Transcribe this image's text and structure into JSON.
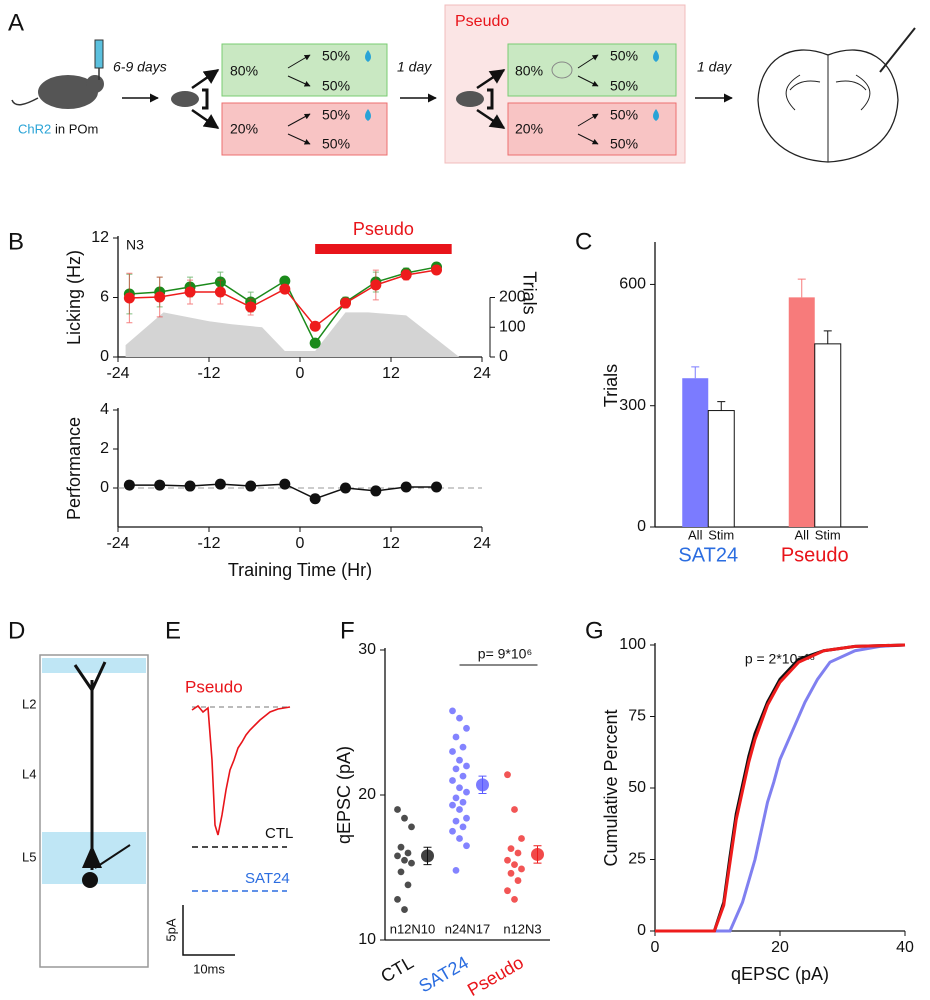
{
  "panel_labels": [
    "A",
    "B",
    "C",
    "D",
    "E",
    "F",
    "G"
  ],
  "panel_a": {
    "interval_1": "6-9 days",
    "virus": "ChR2",
    "region": "in POm",
    "train": {
      "high": "80%",
      "high_rewarded": "50%",
      "high_unrewarded": "50%",
      "low": "20%",
      "low_rewarded": "50%",
      "low_unrewarded": "50%"
    },
    "interval_2": "1 day",
    "pseudo_title": "Pseudo",
    "pseudo": {
      "high": "80%",
      "high_rewarded": "50%",
      "high_unrewarded": "50%",
      "low": "20%",
      "low_rewarded": "50%",
      "low_unrewarded": "50%"
    },
    "interval_3": "1 day"
  },
  "panel_d": {
    "layers": [
      "L2",
      "L4",
      "L5"
    ]
  },
  "panel_e": {
    "condition": "Pseudo",
    "traces": [
      "CTL",
      "SAT24"
    ],
    "scale_y": "5pA",
    "scale_x": "10ms"
  },
  "chart_data": [
    {
      "type": "line",
      "annotation": "N3",
      "ylabel": "Licking (Hz)",
      "y2label": "Trials",
      "highlight": {
        "label": "Pseudo",
        "range": [
          2,
          20
        ],
        "color": "#e8141a"
      },
      "x": [
        -22.5,
        -18.5,
        -14.5,
        -10.5,
        -6.5,
        -2,
        2,
        6,
        10,
        14,
        18
      ],
      "xlim": [
        -24,
        24
      ],
      "xticks": [
        -24,
        -12,
        0,
        12,
        24
      ],
      "ylim": [
        0,
        12
      ],
      "yticks": [
        0,
        6,
        12
      ],
      "y2lim": [
        0,
        400
      ],
      "y2ticks": [
        0,
        100,
        200
      ],
      "markers": true,
      "series": [
        {
          "axis": "y2",
          "area": true,
          "color": "#d4d4d4",
          "x": [
            -23,
            -18,
            -12,
            -9,
            -5,
            -2,
            2,
            6,
            9,
            14,
            18,
            21
          ],
          "values": [
            40,
            150,
            120,
            110,
            100,
            20,
            20,
            150,
            150,
            140,
            60,
            0
          ]
        },
        {
          "color": "#1b8a1b",
          "values": [
            6.35,
            6.55,
            7.06,
            7.56,
            5.54,
            7.66,
            1.4,
            5.54,
            7.56,
            8.47,
            9.07
          ],
          "errors": [
            2,
            1.5,
            1,
            1,
            1,
            0.3,
            0.3,
            0.5,
            1,
            0.5,
            0.3
          ]
        },
        {
          "color": "#ee1c1c",
          "values": [
            5.95,
            6.05,
            6.55,
            6.55,
            5.04,
            6.85,
            3.1,
            5.44,
            7.26,
            8.27,
            8.77
          ],
          "errors": [
            2.5,
            2,
            1.2,
            1.2,
            0.8,
            0.3,
            0.3,
            0.5,
            1.5,
            0.5,
            0.3
          ]
        }
      ]
    },
    {
      "type": "line",
      "ylabel": "Performance",
      "xlabel": "Training Time (Hr)",
      "x": [
        -22.5,
        -18.5,
        -14.5,
        -10.5,
        -6.5,
        -2,
        2,
        6,
        10,
        14,
        18
      ],
      "xlim": [
        -24,
        24
      ],
      "xticks": [
        -24,
        -12,
        0,
        12,
        24
      ],
      "ylim": [
        -2,
        4
      ],
      "yticks": [
        0,
        2,
        4
      ],
      "refline": 0,
      "markers": true,
      "series": [
        {
          "color": "#111111",
          "values": [
            0.15,
            0.15,
            0.1,
            0.2,
            0.1,
            0.2,
            -0.55,
            0,
            -0.15,
            0.05,
            0.05
          ]
        }
      ]
    },
    {
      "type": "bar",
      "ylabel": "Trials",
      "categories": [
        "SAT24",
        "Pseudo"
      ],
      "category_colors": [
        "#2b6de0",
        "#e8141a"
      ],
      "ylim": [
        0,
        700
      ],
      "yticks": [
        0,
        300,
        600
      ],
      "series": [
        {
          "name": "All",
          "colors": [
            "#7b7bff",
            "#f77b7b"
          ],
          "values": [
            368,
            568
          ],
          "errors": [
            28,
            45
          ]
        },
        {
          "name": "Stim",
          "colors": [
            "#ffffff",
            "#ffffff"
          ],
          "values": [
            288,
            453
          ],
          "errors": [
            22,
            32
          ]
        }
      ]
    },
    {
      "type": "strip",
      "ylabel": "qEPSC (pA)",
      "annotation": "p= 9*10⁶",
      "categories": [
        "CTL",
        "SAT24",
        "Pseudo"
      ],
      "category_colors": [
        "#111111",
        "#2b6de0",
        "#e8141a"
      ],
      "ylim": [
        10,
        30
      ],
      "yticks": [
        10,
        20,
        30
      ],
      "groups": [
        {
          "color": "#111111",
          "n_label": "n12N10",
          "mean": 15.8,
          "error": 0.6,
          "values": [
            19.0,
            18.4,
            17.8,
            16.4,
            16.0,
            15.8,
            15.5,
            15.3,
            14.7,
            13.8,
            12.8,
            12.1
          ]
        },
        {
          "color": "#5a5aff",
          "n_label": "n24N17",
          "mean": 20.7,
          "error": 0.6,
          "values": [
            25.8,
            25.3,
            24.6,
            24.0,
            23.3,
            23.0,
            22.4,
            22.0,
            21.8,
            21.3,
            21.0,
            20.5,
            20.2,
            19.8,
            19.5,
            19.3,
            19.0,
            18.4,
            18.2,
            17.8,
            17.5,
            17.0,
            16.5,
            14.8
          ]
        },
        {
          "color": "#ee1c1c",
          "n_label": "n12N3",
          "mean": 15.9,
          "error": 0.6,
          "values": [
            21.4,
            19.0,
            17.0,
            16.3,
            16.0,
            15.5,
            15.2,
            14.9,
            14.6,
            14.1,
            13.4,
            12.8
          ]
        }
      ]
    },
    {
      "type": "line",
      "ylabel": "Cumulative Percent",
      "xlabel": "qEPSC (pA)",
      "annotation": "p = 2*10⁻¹⁶",
      "xlim": [
        0,
        40
      ],
      "xticks": [
        0,
        20,
        40
      ],
      "ylim": [
        0,
        100
      ],
      "yticks": [
        0,
        25,
        50,
        75,
        100
      ],
      "series": [
        {
          "color": "#8080f0",
          "x": [
            0,
            12,
            14,
            16,
            17,
            18,
            19,
            20,
            22,
            24,
            26,
            28,
            32,
            36,
            40
          ],
          "values": [
            0,
            0,
            10,
            25,
            35,
            45,
            52,
            60,
            70,
            80,
            88,
            94,
            98,
            99.5,
            100
          ]
        },
        {
          "color": "#111111",
          "x": [
            0,
            9.5,
            11,
            12,
            13,
            14,
            15,
            16,
            18,
            20,
            23,
            27,
            32,
            40
          ],
          "values": [
            0,
            0,
            10,
            26,
            41,
            51,
            61,
            69,
            80,
            88,
            95,
            98,
            99.5,
            100
          ]
        },
        {
          "color": "#ee1c1c",
          "x": [
            0,
            9.5,
            11,
            12,
            13,
            14,
            15,
            16,
            18,
            20,
            23,
            27,
            32,
            40
          ],
          "values": [
            0,
            0,
            9,
            24,
            39,
            49,
            59,
            67,
            79,
            87,
            94,
            98,
            99.5,
            100
          ]
        }
      ]
    }
  ]
}
